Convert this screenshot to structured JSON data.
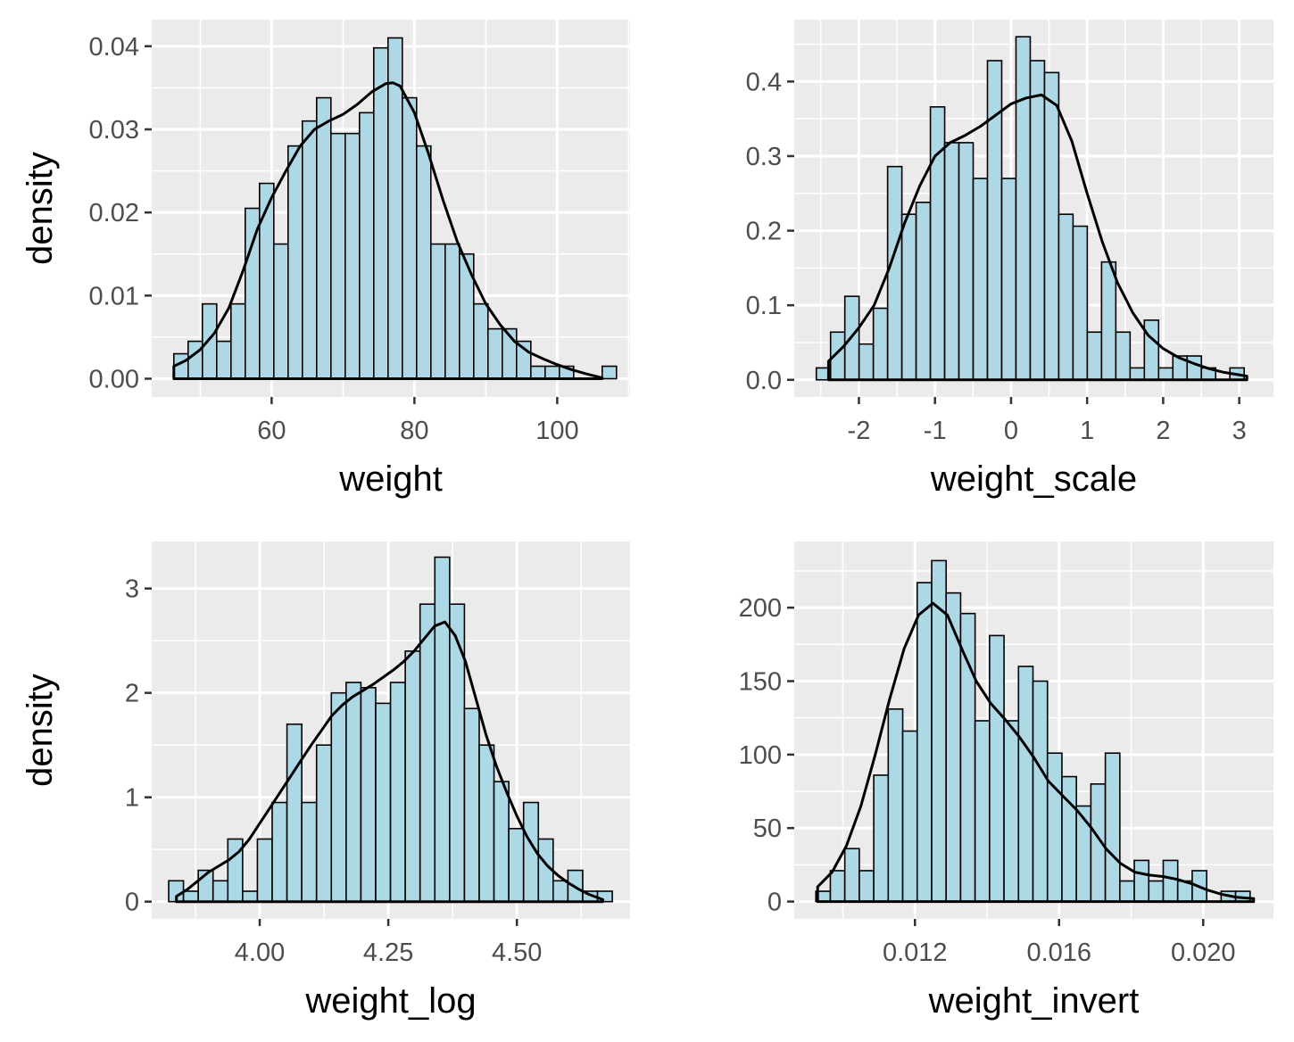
{
  "chart_data": [
    {
      "type": "histogram",
      "xlabel": "weight",
      "ylabel": "density",
      "xlim": [
        43.2,
        110.2
      ],
      "ylim": [
        -0.0022,
        0.0432
      ],
      "x_ticks": [
        60,
        80,
        100
      ],
      "x_tick_labels": [
        "60",
        "80",
        "100"
      ],
      "y_ticks": [
        0,
        0.01,
        0.02,
        0.03,
        0.04
      ],
      "y_tick_labels": [
        "0.00",
        "0.01",
        "0.02",
        "0.03",
        "0.04"
      ],
      "bin_start": 46.3,
      "bin_width": 2.0,
      "values": [
        0.003,
        0.0045,
        0.009,
        0.0045,
        0.009,
        0.0205,
        0.0235,
        0.0162,
        0.028,
        0.031,
        0.0338,
        0.0295,
        0.0295,
        0.032,
        0.0398,
        0.041,
        0.0338,
        0.028,
        0.0162,
        0.0162,
        0.015,
        0.009,
        0.006,
        0.006,
        0.0045,
        0.0015,
        0.0015,
        0.0015,
        0.0,
        0.0,
        0.0015
      ],
      "density_x": [
        46.3,
        48,
        50,
        52,
        54,
        56,
        58,
        60,
        62,
        64,
        66,
        68,
        70,
        72,
        74,
        76,
        77,
        78,
        80,
        82,
        84,
        86,
        88,
        90,
        92,
        94,
        96,
        98,
        100,
        102,
        104,
        106.3
      ],
      "density_y": [
        0.0015,
        0.0022,
        0.0035,
        0.0055,
        0.0085,
        0.013,
        0.018,
        0.0218,
        0.025,
        0.028,
        0.03,
        0.031,
        0.0318,
        0.033,
        0.0345,
        0.0355,
        0.0356,
        0.0352,
        0.032,
        0.027,
        0.0215,
        0.0165,
        0.0125,
        0.009,
        0.0065,
        0.0045,
        0.0032,
        0.0024,
        0.0017,
        0.0011,
        0.0006,
        0.0001
      ]
    },
    {
      "type": "histogram",
      "xlabel": "weight_scale",
      "ylabel": "",
      "xlim": [
        -2.85,
        3.45
      ],
      "ylim": [
        -0.023,
        0.483
      ],
      "x_ticks": [
        -2,
        -1,
        0,
        1,
        2,
        3
      ],
      "x_tick_labels": [
        "-2",
        "-1",
        "0",
        "1",
        "2",
        "3"
      ],
      "y_ticks": [
        0,
        0.1,
        0.2,
        0.3,
        0.4
      ],
      "y_tick_labels": [
        "0.0",
        "0.1",
        "0.2",
        "0.3",
        "0.4"
      ],
      "bin_start": -2.56,
      "bin_width": 0.1875,
      "values": [
        0.016,
        0.064,
        0.112,
        0.048,
        0.096,
        0.286,
        0.222,
        0.238,
        0.366,
        0.318,
        0.318,
        0.27,
        0.428,
        0.27,
        0.46,
        0.428,
        0.412,
        0.222,
        0.206,
        0.064,
        0.158,
        0.064,
        0.016,
        0.08,
        0.016,
        0.032,
        0.032,
        0.016,
        0.0,
        0.016
      ],
      "density_x": [
        -2.4,
        -2.2,
        -2.0,
        -1.8,
        -1.6,
        -1.4,
        -1.2,
        -1.0,
        -0.8,
        -0.6,
        -0.4,
        -0.2,
        0.0,
        0.2,
        0.4,
        0.6,
        0.8,
        1.0,
        1.2,
        1.4,
        1.6,
        1.8,
        2.0,
        2.2,
        2.4,
        2.6,
        2.8,
        3.1
      ],
      "density_y": [
        0.025,
        0.045,
        0.07,
        0.1,
        0.15,
        0.21,
        0.26,
        0.3,
        0.318,
        0.328,
        0.34,
        0.355,
        0.37,
        0.378,
        0.382,
        0.368,
        0.32,
        0.25,
        0.185,
        0.13,
        0.09,
        0.06,
        0.042,
        0.03,
        0.022,
        0.015,
        0.01,
        0.005
      ]
    },
    {
      "type": "histogram",
      "xlabel": "weight_log",
      "ylabel": "density",
      "xlim": [
        3.79,
        4.72
      ],
      "ylim": [
        -0.165,
        3.45
      ],
      "x_ticks": [
        4.0,
        4.25,
        4.5
      ],
      "x_tick_labels": [
        "4.00",
        "4.25",
        "4.50"
      ],
      "y_ticks": [
        0,
        1,
        2,
        3
      ],
      "y_tick_labels": [
        "0",
        "1",
        "2",
        "3"
      ],
      "bin_start": 3.823,
      "bin_width": 0.02875,
      "values": [
        0.2,
        0.1,
        0.3,
        0.2,
        0.6,
        0.1,
        0.6,
        0.95,
        1.7,
        0.95,
        1.5,
        2.0,
        2.1,
        2.05,
        1.9,
        2.1,
        2.4,
        2.85,
        3.3,
        2.85,
        1.85,
        1.5,
        1.15,
        0.7,
        0.95,
        0.6,
        0.2,
        0.3,
        0.1,
        0.1
      ],
      "density_x": [
        3.838,
        3.86,
        3.88,
        3.9,
        3.92,
        3.94,
        3.96,
        3.98,
        4.0,
        4.02,
        4.04,
        4.06,
        4.08,
        4.1,
        4.12,
        4.14,
        4.16,
        4.18,
        4.2,
        4.22,
        4.24,
        4.26,
        4.28,
        4.3,
        4.32,
        4.34,
        4.36,
        4.38,
        4.4,
        4.42,
        4.44,
        4.46,
        4.48,
        4.5,
        4.52,
        4.54,
        4.56,
        4.58,
        4.6,
        4.62,
        4.64,
        4.667
      ],
      "density_y": [
        0.05,
        0.12,
        0.2,
        0.28,
        0.34,
        0.4,
        0.48,
        0.6,
        0.75,
        0.9,
        1.05,
        1.2,
        1.35,
        1.5,
        1.64,
        1.78,
        1.88,
        1.96,
        2.02,
        2.08,
        2.15,
        2.22,
        2.3,
        2.4,
        2.52,
        2.64,
        2.68,
        2.55,
        2.3,
        1.95,
        1.6,
        1.3,
        1.05,
        0.82,
        0.62,
        0.46,
        0.34,
        0.25,
        0.18,
        0.12,
        0.07,
        0.02
      ]
    },
    {
      "type": "histogram",
      "xlabel": "weight_invert",
      "ylabel": "",
      "xlim": [
        0.00865,
        0.02195
      ],
      "ylim": [
        -11.8,
        245
      ],
      "x_ticks": [
        0.012,
        0.016,
        0.02
      ],
      "x_tick_labels": [
        "0.012",
        "0.016",
        "0.020"
      ],
      "y_ticks": [
        0,
        50,
        100,
        150,
        200
      ],
      "y_tick_labels": [
        "0",
        "50",
        "100",
        "150",
        "200"
      ],
      "bin_start": 0.00925,
      "bin_width": 0.0004017,
      "values": [
        7,
        21,
        36,
        21,
        86,
        131,
        116,
        217,
        232,
        210,
        196,
        123,
        181,
        123,
        160,
        150,
        101,
        85,
        65,
        80,
        101,
        14,
        28,
        14,
        28,
        14,
        21,
        0,
        7,
        7
      ],
      "density_x": [
        0.0093,
        0.0097,
        0.0101,
        0.0105,
        0.0109,
        0.0113,
        0.0117,
        0.0121,
        0.0125,
        0.0129,
        0.0133,
        0.0137,
        0.0141,
        0.0145,
        0.0149,
        0.0153,
        0.0157,
        0.0161,
        0.0165,
        0.0169,
        0.0173,
        0.0177,
        0.0181,
        0.0185,
        0.0189,
        0.0193,
        0.0197,
        0.0201,
        0.0205,
        0.0209,
        0.0214
      ],
      "density_y": [
        10,
        20,
        38,
        65,
        100,
        138,
        172,
        195,
        203,
        195,
        172,
        150,
        135,
        124,
        112,
        98,
        82,
        72,
        62,
        50,
        36,
        26,
        20,
        18,
        17,
        15,
        12,
        8,
        5,
        3,
        2
      ]
    }
  ],
  "colors": {
    "panel_background": "#ebebeb",
    "gridline": "#ffffff",
    "bar_fill": "#add8e6",
    "bar_outline": "#000000",
    "density_line": "#000000",
    "tick_label": "#4d4d4d"
  }
}
